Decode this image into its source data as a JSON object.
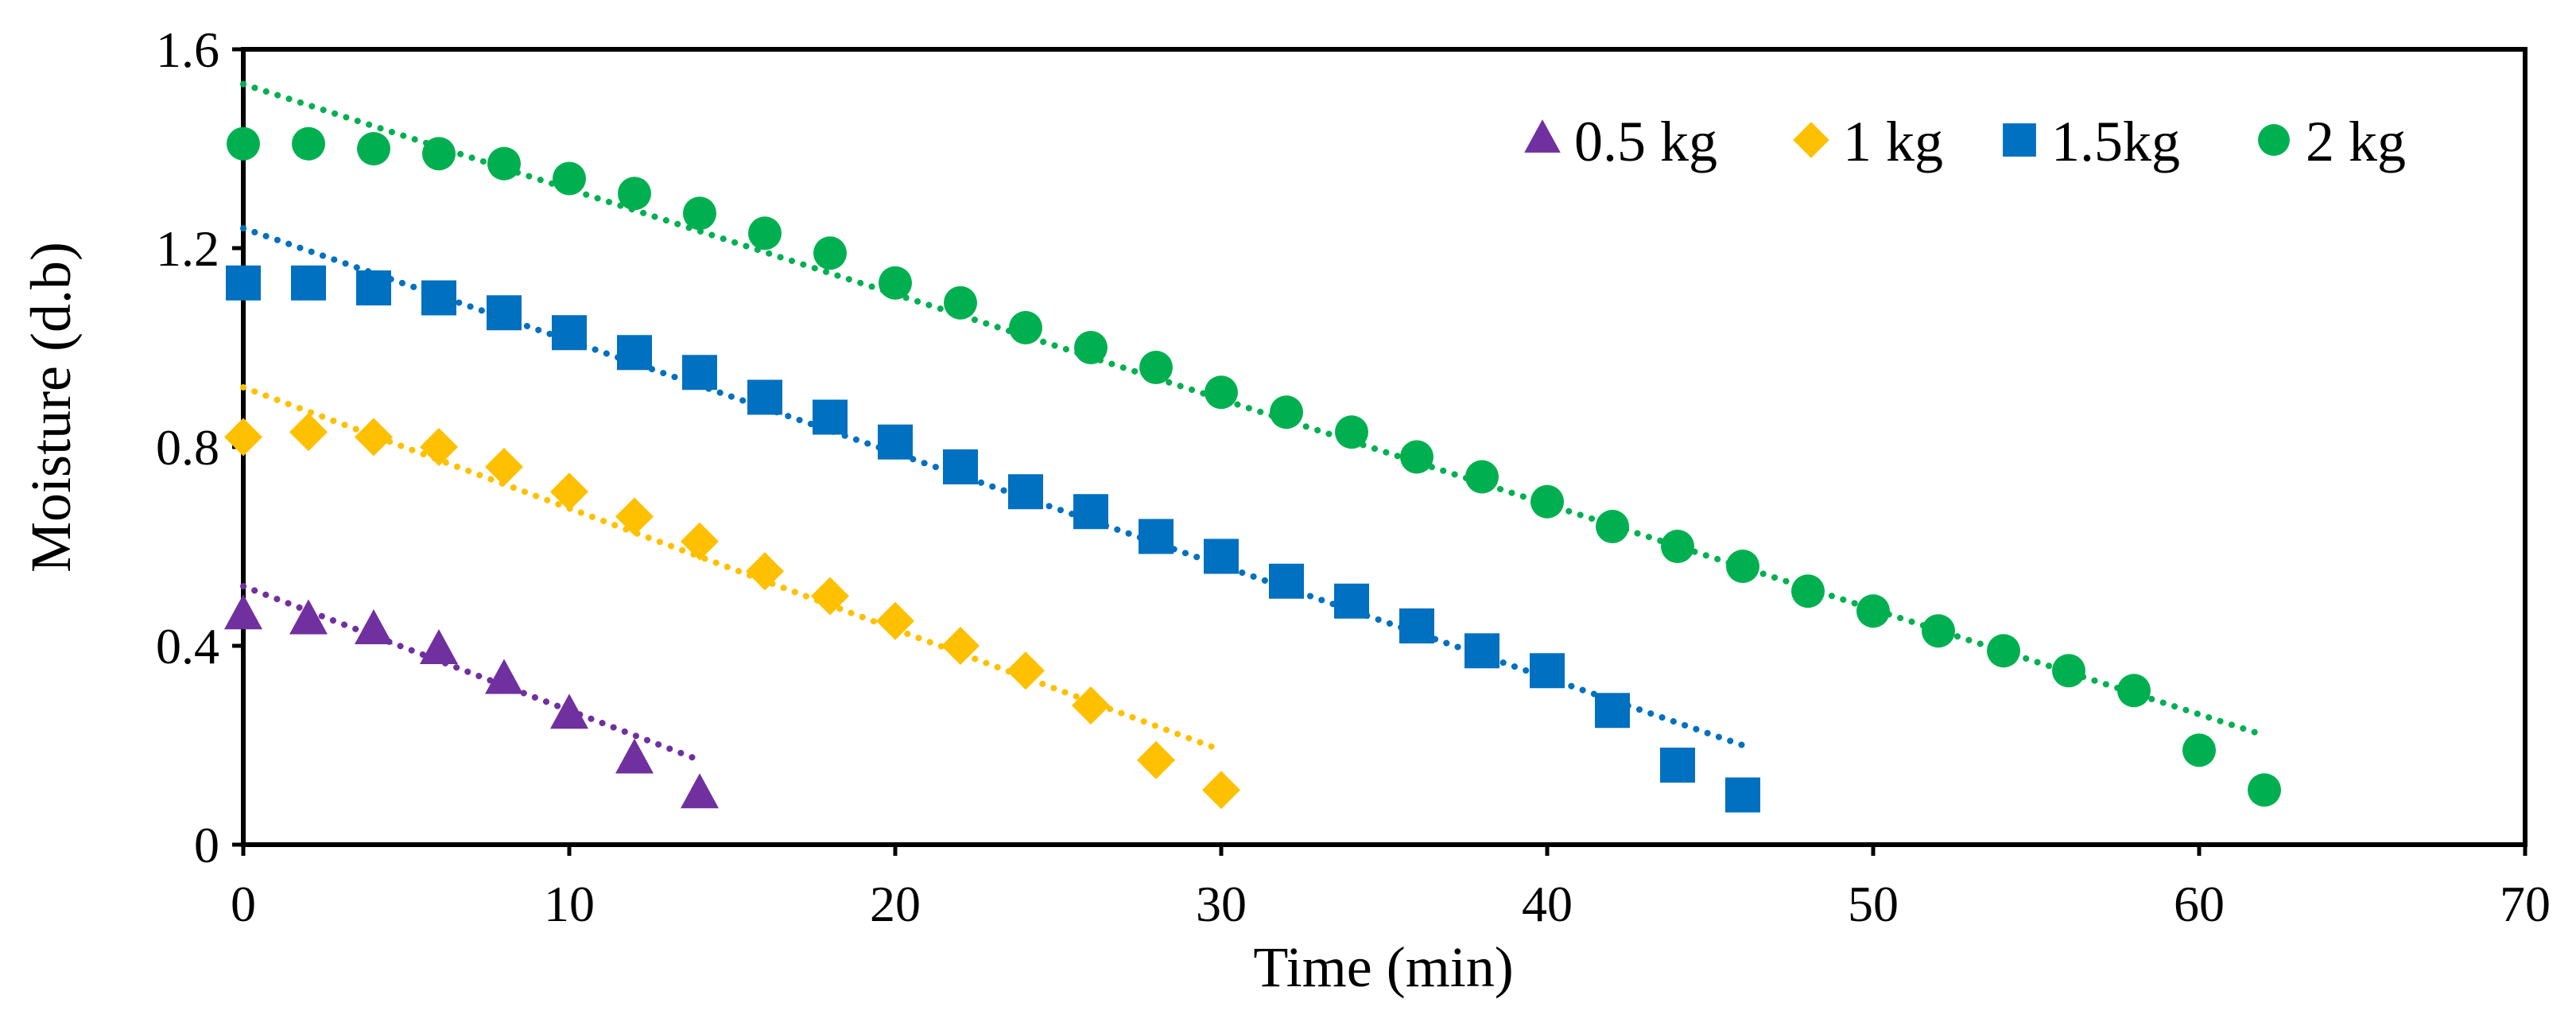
{
  "chart_data": {
    "type": "scatter",
    "title": "",
    "xlabel": "Time (min)",
    "ylabel": "Moisture (d.b)",
    "xlim": [
      0,
      70
    ],
    "ylim": [
      0,
      1.6
    ],
    "xticks": [
      "0",
      "10",
      "20",
      "30",
      "40",
      "50",
      "60",
      "70"
    ],
    "yticks": [
      "0",
      "0.4",
      "0.8",
      "1.2",
      "1.6"
    ],
    "legend_position": "top-right",
    "series": [
      {
        "name": "0.5 kg",
        "marker": "triangle",
        "color": "#7030A0",
        "x": [
          0,
          2,
          4,
          6,
          8,
          10,
          12,
          14
        ],
        "y": [
          0.46,
          0.45,
          0.43,
          0.39,
          0.33,
          0.26,
          0.17,
          0.1
        ],
        "trend": {
          "x": [
            0,
            14
          ],
          "y": [
            0.52,
            0.17
          ]
        }
      },
      {
        "name": "1 kg",
        "marker": "diamond",
        "color": "#FFC000",
        "x": [
          0,
          2,
          4,
          6,
          8,
          10,
          12,
          14,
          16,
          18,
          20,
          22,
          24,
          26,
          28,
          30
        ],
        "y": [
          0.82,
          0.83,
          0.82,
          0.8,
          0.76,
          0.71,
          0.66,
          0.61,
          0.55,
          0.5,
          0.45,
          0.4,
          0.35,
          0.28,
          0.17,
          0.11
        ],
        "trend": {
          "x": [
            0,
            30
          ],
          "y": [
            0.92,
            0.19
          ]
        }
      },
      {
        "name": "1.5kg",
        "marker": "square",
        "color": "#0070C0",
        "x": [
          0,
          2,
          4,
          6,
          8,
          10,
          12,
          14,
          16,
          18,
          20,
          22,
          24,
          26,
          28,
          30,
          32,
          34,
          36,
          38,
          40,
          42,
          44,
          46
        ],
        "y": [
          1.13,
          1.13,
          1.12,
          1.1,
          1.07,
          1.03,
          0.99,
          0.95,
          0.9,
          0.86,
          0.81,
          0.76,
          0.71,
          0.67,
          0.62,
          0.58,
          0.53,
          0.49,
          0.44,
          0.39,
          0.35,
          0.27,
          0.16,
          0.1
        ],
        "trend": {
          "x": [
            0,
            46
          ],
          "y": [
            1.24,
            0.2
          ]
        }
      },
      {
        "name": "2 kg",
        "marker": "circle",
        "color": "#00B050",
        "x": [
          0,
          2,
          4,
          6,
          8,
          10,
          12,
          14,
          16,
          18,
          20,
          22,
          24,
          26,
          28,
          30,
          32,
          34,
          36,
          38,
          40,
          42,
          44,
          46,
          48,
          50,
          52,
          54,
          56,
          58,
          60,
          62
        ],
        "y": [
          1.41,
          1.41,
          1.4,
          1.39,
          1.37,
          1.34,
          1.31,
          1.27,
          1.23,
          1.19,
          1.13,
          1.09,
          1.04,
          1.0,
          0.96,
          0.91,
          0.87,
          0.83,
          0.78,
          0.74,
          0.69,
          0.64,
          0.6,
          0.56,
          0.51,
          0.47,
          0.43,
          0.39,
          0.35,
          0.31,
          0.19,
          0.11
        ],
        "trend": {
          "x": [
            0,
            62
          ],
          "y": [
            1.53,
            0.22
          ]
        }
      }
    ]
  }
}
